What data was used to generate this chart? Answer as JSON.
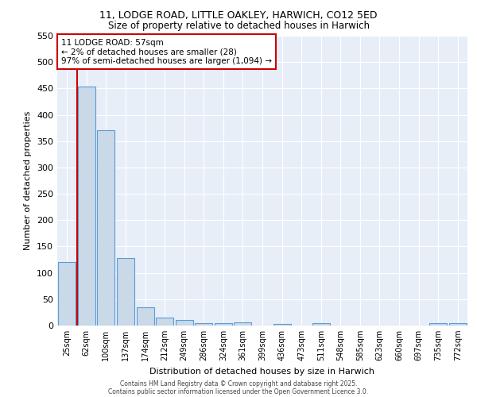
{
  "title1": "11, LODGE ROAD, LITTLE OAKLEY, HARWICH, CO12 5ED",
  "title2": "Size of property relative to detached houses in Harwich",
  "xlabel": "Distribution of detached houses by size in Harwich",
  "ylabel": "Number of detached properties",
  "categories": [
    "25sqm",
    "62sqm",
    "100sqm",
    "137sqm",
    "174sqm",
    "212sqm",
    "249sqm",
    "286sqm",
    "324sqm",
    "361sqm",
    "399sqm",
    "436sqm",
    "473sqm",
    "511sqm",
    "548sqm",
    "585sqm",
    "623sqm",
    "660sqm",
    "697sqm",
    "735sqm",
    "772sqm"
  ],
  "values": [
    120,
    453,
    370,
    128,
    35,
    15,
    10,
    5,
    4,
    6,
    0,
    3,
    0,
    4,
    0,
    0,
    0,
    0,
    0,
    4,
    4
  ],
  "bar_color": "#c9d9e8",
  "bar_edge_color": "#5b9bd5",
  "red_line_x": 0.5,
  "annotation_line1": "11 LODGE ROAD: 57sqm",
  "annotation_line2": "← 2% of detached houses are smaller (28)",
  "annotation_line3": "97% of semi-detached houses are larger (1,094) →",
  "annotation_box_color": "#ffffff",
  "annotation_edge_color": "#cc0000",
  "red_line_color": "#cc0000",
  "ylim": [
    0,
    550
  ],
  "yticks": [
    0,
    50,
    100,
    150,
    200,
    250,
    300,
    350,
    400,
    450,
    500,
    550
  ],
  "background_color": "#e8eef8",
  "footer1": "Contains HM Land Registry data © Crown copyright and database right 2025.",
  "footer2": "Contains public sector information licensed under the Open Government Licence 3.0."
}
